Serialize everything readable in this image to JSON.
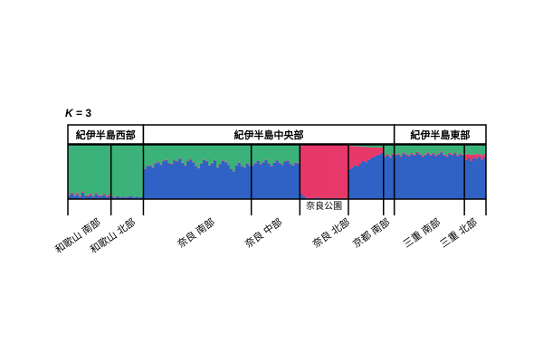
{
  "chart_data": {
    "type": "bar",
    "stacked": true,
    "ylim": [
      0,
      1
    ],
    "k_symbol": "K",
    "k_rest": " = 3",
    "colors": [
      "#2f62c4",
      "#e8386a",
      "#3bb27a"
    ],
    "regions": [
      {
        "label": "紀伊半島西部",
        "population_range": [
          0,
          1
        ]
      },
      {
        "label": "紀伊半島中央部",
        "population_range": [
          2,
          6
        ]
      },
      {
        "label": "紀伊半島東部",
        "population_range": [
          7,
          8
        ]
      }
    ],
    "populations": [
      {
        "label": "和歌山 南部",
        "samples": [
          [
            0.06,
            0.02,
            0.92
          ],
          [
            0.1,
            0.02,
            0.88
          ],
          [
            0.05,
            0.01,
            0.94
          ],
          [
            0.08,
            0.03,
            0.89
          ],
          [
            0.04,
            0.02,
            0.94
          ],
          [
            0.12,
            0.02,
            0.86
          ],
          [
            0.06,
            0.01,
            0.93
          ],
          [
            0.05,
            0.02,
            0.93
          ],
          [
            0.07,
            0.03,
            0.9
          ],
          [
            0.04,
            0.01,
            0.95
          ],
          [
            0.09,
            0.02,
            0.89
          ],
          [
            0.05,
            0.02,
            0.93
          ],
          [
            0.06,
            0.01,
            0.93
          ],
          [
            0.08,
            0.02,
            0.9
          ],
          [
            0.04,
            0.02,
            0.94
          ],
          [
            0.05,
            0.03,
            0.92
          ]
        ]
      },
      {
        "label": "和歌山 北部",
        "samples": [
          [
            0.04,
            0.01,
            0.95
          ],
          [
            0.03,
            0.01,
            0.96
          ],
          [
            0.05,
            0.0,
            0.95
          ],
          [
            0.03,
            0.01,
            0.96
          ],
          [
            0.04,
            0.0,
            0.96
          ],
          [
            0.03,
            0.01,
            0.96
          ],
          [
            0.04,
            0.01,
            0.95
          ],
          [
            0.05,
            0.0,
            0.95
          ],
          [
            0.03,
            0.0,
            0.97
          ],
          [
            0.04,
            0.01,
            0.95
          ],
          [
            0.03,
            0.0,
            0.97
          ],
          [
            0.04,
            0.0,
            0.96
          ]
        ]
      },
      {
        "label": "奈良 南部",
        "samples": [
          [
            0.55,
            0.01,
            0.44
          ],
          [
            0.6,
            0.01,
            0.39
          ],
          [
            0.62,
            0.01,
            0.37
          ],
          [
            0.58,
            0.01,
            0.41
          ],
          [
            0.65,
            0.01,
            0.34
          ],
          [
            0.68,
            0.01,
            0.31
          ],
          [
            0.63,
            0.01,
            0.36
          ],
          [
            0.7,
            0.01,
            0.29
          ],
          [
            0.72,
            0.01,
            0.27
          ],
          [
            0.66,
            0.01,
            0.33
          ],
          [
            0.64,
            0.01,
            0.35
          ],
          [
            0.71,
            0.01,
            0.28
          ],
          [
            0.69,
            0.01,
            0.3
          ],
          [
            0.74,
            0.01,
            0.25
          ],
          [
            0.67,
            0.01,
            0.32
          ],
          [
            0.62,
            0.01,
            0.37
          ],
          [
            0.7,
            0.01,
            0.29
          ],
          [
            0.73,
            0.01,
            0.26
          ],
          [
            0.68,
            0.01,
            0.31
          ],
          [
            0.6,
            0.01,
            0.39
          ],
          [
            0.57,
            0.01,
            0.42
          ],
          [
            0.65,
            0.01,
            0.34
          ],
          [
            0.72,
            0.01,
            0.27
          ],
          [
            0.69,
            0.01,
            0.3
          ],
          [
            0.62,
            0.01,
            0.37
          ],
          [
            0.66,
            0.01,
            0.33
          ],
          [
            0.71,
            0.01,
            0.28
          ],
          [
            0.58,
            0.01,
            0.41
          ],
          [
            0.64,
            0.01,
            0.35
          ],
          [
            0.7,
            0.01,
            0.29
          ],
          [
            0.68,
            0.01,
            0.31
          ],
          [
            0.63,
            0.01,
            0.36
          ],
          [
            0.55,
            0.01,
            0.44
          ],
          [
            0.5,
            0.01,
            0.49
          ],
          [
            0.62,
            0.01,
            0.37
          ],
          [
            0.67,
            0.01,
            0.32
          ],
          [
            0.6,
            0.01,
            0.39
          ],
          [
            0.58,
            0.01,
            0.41
          ],
          [
            0.65,
            0.01,
            0.34
          ],
          [
            0.61,
            0.01,
            0.38
          ]
        ]
      },
      {
        "label": "奈良 中部",
        "samples": [
          [
            0.62,
            0.01,
            0.37
          ],
          [
            0.66,
            0.01,
            0.33
          ],
          [
            0.7,
            0.01,
            0.29
          ],
          [
            0.64,
            0.01,
            0.35
          ],
          [
            0.68,
            0.01,
            0.31
          ],
          [
            0.72,
            0.01,
            0.27
          ],
          [
            0.65,
            0.01,
            0.34
          ],
          [
            0.6,
            0.01,
            0.39
          ],
          [
            0.67,
            0.01,
            0.32
          ],
          [
            0.71,
            0.01,
            0.28
          ],
          [
            0.66,
            0.01,
            0.33
          ],
          [
            0.63,
            0.01,
            0.36
          ],
          [
            0.69,
            0.01,
            0.3
          ],
          [
            0.7,
            0.01,
            0.29
          ],
          [
            0.64,
            0.01,
            0.35
          ],
          [
            0.62,
            0.01,
            0.37
          ],
          [
            0.67,
            0.01,
            0.32
          ],
          [
            0.65,
            0.01,
            0.34
          ]
        ]
      },
      {
        "label": "奈良公園",
        "samples": [
          [
            0.1,
            0.88,
            0.02
          ],
          [
            0.05,
            0.94,
            0.01
          ],
          [
            0.02,
            0.98,
            0.0
          ],
          [
            0.01,
            0.99,
            0.0
          ],
          [
            0.02,
            0.98,
            0.0
          ],
          [
            0.01,
            0.99,
            0.0
          ],
          [
            0.03,
            0.97,
            0.0
          ],
          [
            0.01,
            0.99,
            0.0
          ],
          [
            0.02,
            0.98,
            0.0
          ],
          [
            0.01,
            0.99,
            0.0
          ],
          [
            0.01,
            0.99,
            0.0
          ],
          [
            0.02,
            0.98,
            0.0
          ],
          [
            0.01,
            0.99,
            0.0
          ],
          [
            0.02,
            0.98,
            0.0
          ],
          [
            0.01,
            0.99,
            0.0
          ],
          [
            0.01,
            0.99,
            0.0
          ],
          [
            0.02,
            0.97,
            0.01
          ],
          [
            0.01,
            0.99,
            0.0
          ]
        ]
      },
      {
        "label": "奈良 北部",
        "samples": [
          [
            0.55,
            0.43,
            0.02
          ],
          [
            0.58,
            0.4,
            0.02
          ],
          [
            0.62,
            0.35,
            0.03
          ],
          [
            0.6,
            0.37,
            0.03
          ],
          [
            0.65,
            0.32,
            0.03
          ],
          [
            0.7,
            0.26,
            0.04
          ],
          [
            0.68,
            0.28,
            0.04
          ],
          [
            0.72,
            0.24,
            0.04
          ],
          [
            0.75,
            0.2,
            0.05
          ],
          [
            0.78,
            0.17,
            0.05
          ],
          [
            0.8,
            0.15,
            0.05
          ],
          [
            0.82,
            0.13,
            0.05
          ],
          [
            0.85,
            0.1,
            0.05
          ]
        ]
      },
      {
        "label": "京都 南部",
        "samples": [
          [
            0.78,
            0.02,
            0.2
          ],
          [
            0.8,
            0.03,
            0.17
          ],
          [
            0.76,
            0.02,
            0.22
          ],
          [
            0.82,
            0.02,
            0.16
          ]
        ]
      },
      {
        "label": "三重 南部",
        "samples": [
          [
            0.8,
            0.02,
            0.18
          ],
          [
            0.82,
            0.02,
            0.16
          ],
          [
            0.78,
            0.02,
            0.2
          ],
          [
            0.84,
            0.02,
            0.14
          ],
          [
            0.81,
            0.02,
            0.17
          ],
          [
            0.79,
            0.02,
            0.19
          ],
          [
            0.83,
            0.02,
            0.15
          ],
          [
            0.8,
            0.02,
            0.18
          ],
          [
            0.85,
            0.02,
            0.13
          ],
          [
            0.82,
            0.02,
            0.16
          ],
          [
            0.78,
            0.02,
            0.2
          ],
          [
            0.81,
            0.02,
            0.17
          ],
          [
            0.84,
            0.02,
            0.14
          ],
          [
            0.8,
            0.02,
            0.18
          ],
          [
            0.83,
            0.02,
            0.15
          ],
          [
            0.79,
            0.02,
            0.19
          ],
          [
            0.82,
            0.02,
            0.16
          ],
          [
            0.86,
            0.02,
            0.12
          ],
          [
            0.8,
            0.02,
            0.18
          ],
          [
            0.78,
            0.02,
            0.2
          ],
          [
            0.83,
            0.02,
            0.15
          ],
          [
            0.81,
            0.02,
            0.17
          ],
          [
            0.84,
            0.02,
            0.14
          ],
          [
            0.79,
            0.02,
            0.19
          ],
          [
            0.82,
            0.02,
            0.16
          ],
          [
            0.8,
            0.02,
            0.18
          ]
        ]
      },
      {
        "label": "三重 北部",
        "samples": [
          [
            0.72,
            0.1,
            0.18
          ],
          [
            0.75,
            0.08,
            0.17
          ],
          [
            0.7,
            0.12,
            0.18
          ],
          [
            0.76,
            0.06,
            0.18
          ],
          [
            0.74,
            0.09,
            0.17
          ],
          [
            0.78,
            0.05,
            0.17
          ],
          [
            0.73,
            0.08,
            0.19
          ],
          [
            0.77,
            0.06,
            0.17
          ]
        ]
      }
    ]
  }
}
